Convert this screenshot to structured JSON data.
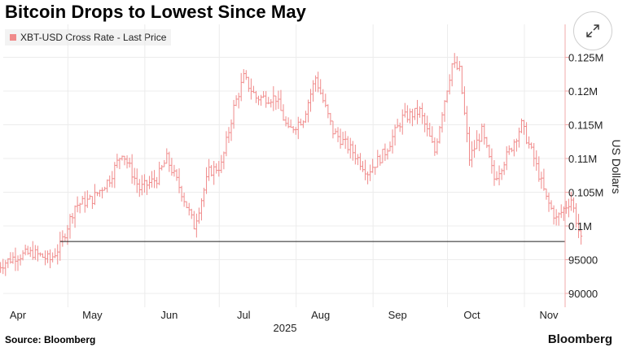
{
  "chart_data": {
    "type": "ohlc",
    "title": "Bitcoin Drops to Lowest Since May",
    "legend": [
      {
        "name": "XBT-USD Cross Rate - Last Price",
        "color": "#f08a8a"
      }
    ],
    "ylabel": "US Dollars",
    "ylim": [
      87000,
      129000
    ],
    "yticks": [
      {
        "value": 90000,
        "label": "90000"
      },
      {
        "value": 95000,
        "label": "95000"
      },
      {
        "value": 100000,
        "label": "0.1M"
      },
      {
        "value": 105000,
        "label": "0.105M"
      },
      {
        "value": 110000,
        "label": "0.11M"
      },
      {
        "value": 115000,
        "label": "0.115M"
      },
      {
        "value": 120000,
        "label": "0.12M"
      },
      {
        "value": 125000,
        "label": "0.125M"
      }
    ],
    "xticks": [
      {
        "date": "2025-04-15",
        "label": "Apr"
      },
      {
        "date": "2025-05-15",
        "label": "May"
      },
      {
        "date": "2025-06-15",
        "label": "Jun"
      },
      {
        "date": "2025-07-15",
        "label": "Jul"
      },
      {
        "date": "2025-08-15",
        "label": "Aug"
      },
      {
        "date": "2025-09-15",
        "label": "Sep"
      },
      {
        "date": "2025-10-15",
        "label": "Oct"
      },
      {
        "date": "2025-11-15",
        "label": "Nov"
      }
    ],
    "year_label": "2025",
    "reference_line": {
      "value": 97700
    },
    "series_color": "#f08a8a",
    "daily_close": [
      [
        "2025-04-07",
        94000
      ],
      [
        "2025-04-14",
        95500
      ],
      [
        "2025-04-21",
        96000
      ],
      [
        "2025-04-28",
        95000
      ],
      [
        "2025-05-02",
        97000
      ],
      [
        "2025-05-08",
        103000
      ],
      [
        "2025-05-15",
        104000
      ],
      [
        "2025-05-22",
        107000
      ],
      [
        "2025-05-27",
        111000
      ],
      [
        "2025-06-03",
        105500
      ],
      [
        "2025-06-10",
        107000
      ],
      [
        "2025-06-14",
        110000
      ],
      [
        "2025-06-20",
        105000
      ],
      [
        "2025-06-25",
        100000
      ],
      [
        "2025-07-01",
        108000
      ],
      [
        "2025-07-06",
        109000
      ],
      [
        "2025-07-11",
        117500
      ],
      [
        "2025-07-15",
        122000
      ],
      [
        "2025-07-20",
        119000
      ],
      [
        "2025-07-28",
        119000
      ],
      [
        "2025-08-02",
        114000
      ],
      [
        "2025-08-08",
        116000
      ],
      [
        "2025-08-13",
        122000
      ],
      [
        "2025-08-20",
        114000
      ],
      [
        "2025-08-28",
        111000
      ],
      [
        "2025-09-03",
        108000
      ],
      [
        "2025-09-10",
        111000
      ],
      [
        "2025-09-17",
        116000
      ],
      [
        "2025-09-24",
        117000
      ],
      [
        "2025-09-30",
        111000
      ],
      [
        "2025-10-03",
        117000
      ],
      [
        "2025-10-07",
        124000
      ],
      [
        "2025-10-10",
        123000
      ],
      [
        "2025-10-14",
        110000
      ],
      [
        "2025-10-19",
        114000
      ],
      [
        "2025-10-24",
        107000
      ],
      [
        "2025-10-30",
        111000
      ],
      [
        "2025-11-04",
        115000
      ],
      [
        "2025-11-09",
        110000
      ],
      [
        "2025-11-14",
        104000
      ],
      [
        "2025-11-18",
        101000
      ],
      [
        "2025-11-24",
        104000
      ],
      [
        "2025-11-28",
        97800
      ]
    ]
  },
  "header": {
    "title": "Bitcoin Drops to Lowest Since May",
    "legend_label": "XBT-USD Cross Rate - Last Price",
    "expand_icon": "expand-arrows-icon"
  },
  "footer": {
    "source": "Source: Bloomberg",
    "watermark": "Bloomberg"
  }
}
